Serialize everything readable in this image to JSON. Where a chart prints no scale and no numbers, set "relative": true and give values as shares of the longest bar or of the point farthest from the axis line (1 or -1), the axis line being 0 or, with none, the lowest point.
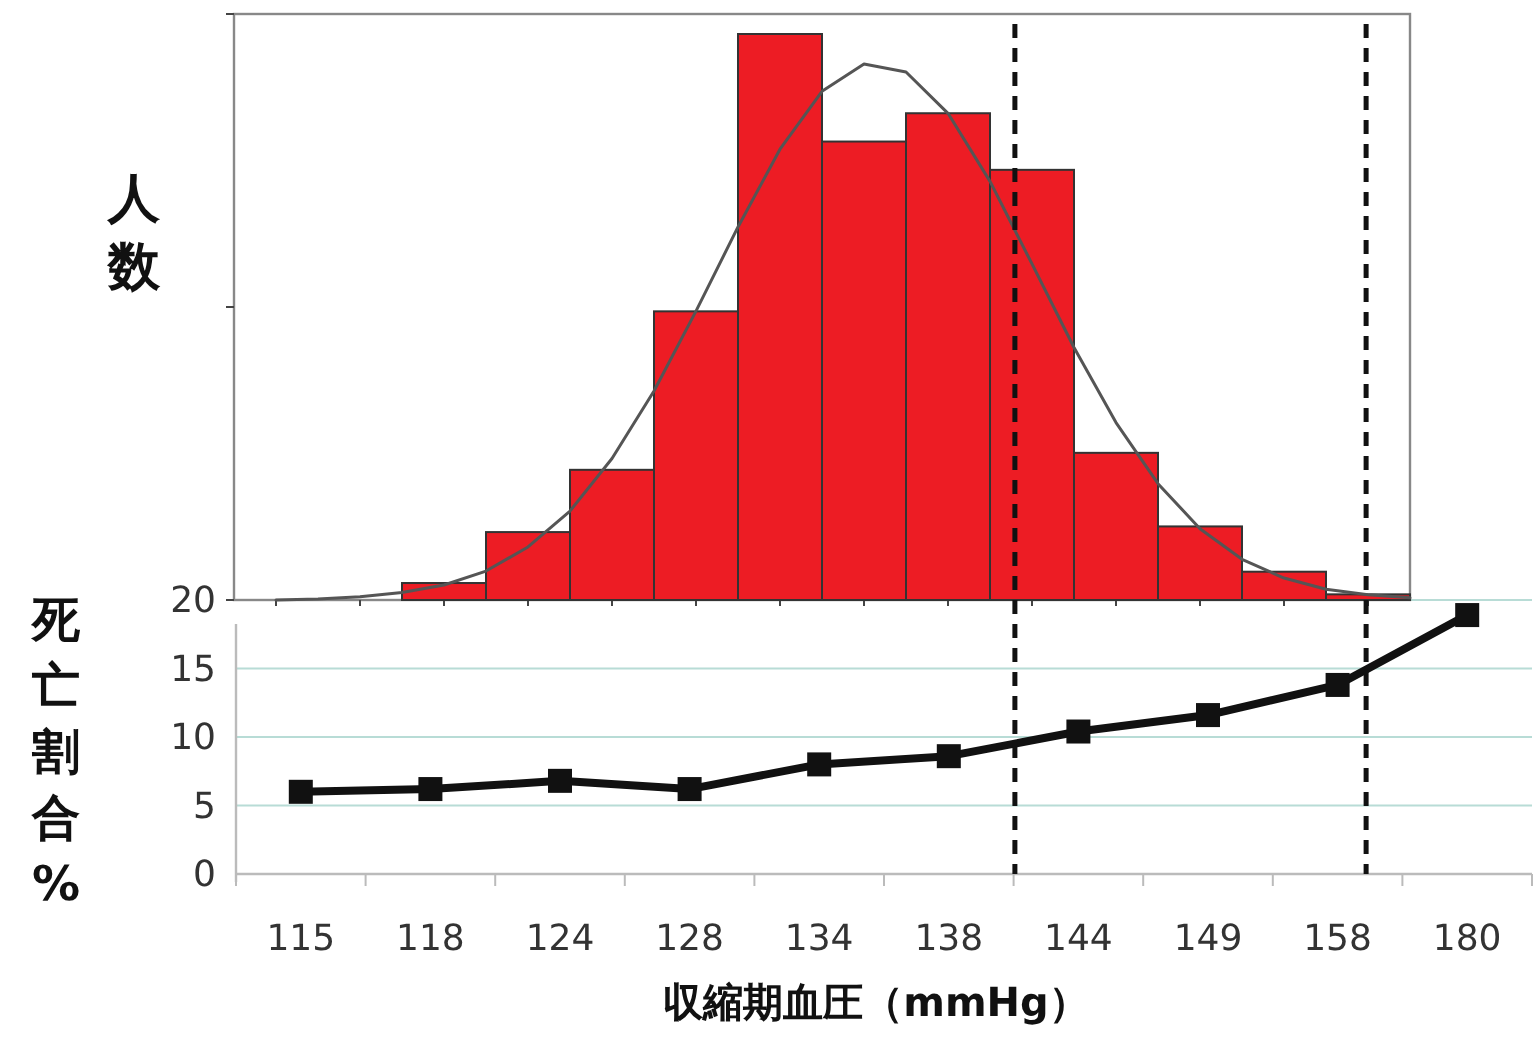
{
  "chart_data": [
    {
      "type": "bar",
      "relative": true,
      "ylabel": "人数",
      "categories": [
        null,
        null,
        null,
        null,
        null,
        null,
        null,
        null,
        null,
        null,
        null,
        null
      ],
      "series": [
        {
          "color": "#ed1c24",
          "values": [
            0.03,
            0.12,
            0.23,
            0.51,
            1,
            0.81,
            0.86,
            0.76,
            0.26,
            0.13,
            0.05,
            0.01
          ]
        }
      ]
    },
    {
      "type": "line",
      "relative": true,
      "categories": [
        null,
        null,
        null,
        null,
        null,
        null,
        null,
        null,
        null,
        null,
        null,
        null,
        null,
        null,
        null,
        null,
        null,
        null,
        null,
        null,
        null,
        null,
        null,
        null,
        null,
        null,
        null,
        null
      ],
      "series": [
        {
          "color": "#555555",
          "values": [
            0,
            0.002,
            0.006,
            0.014,
            0.028,
            0.054,
            0.099,
            0.166,
            0.264,
            0.39,
            0.539,
            0.696,
            0.841,
            0.949,
            1,
            0.985,
            0.908,
            0.781,
            0.627,
            0.471,
            0.331,
            0.217,
            0.133,
            0.076,
            0.041,
            0.02,
            0.01,
            0.004
          ]
        }
      ]
    },
    {
      "type": "line",
      "xlabel": "収縮期血圧（mmHg）",
      "ylabel": "死亡割合%",
      "categories": [
        "115",
        "118",
        "124",
        "128",
        "134",
        "138",
        "144",
        "149",
        "158",
        "180"
      ],
      "series": [
        {
          "color": "#111111",
          "values": [
            6.0,
            6.2,
            6.8,
            6.2,
            8.0,
            8.6,
            10.4,
            11.6,
            13.8,
            18.9
          ]
        }
      ],
      "marker": "square",
      "ylim": [
        0,
        20
      ],
      "yticks": [
        0,
        5,
        10,
        15,
        20
      ],
      "grid": "y"
    }
  ]
}
